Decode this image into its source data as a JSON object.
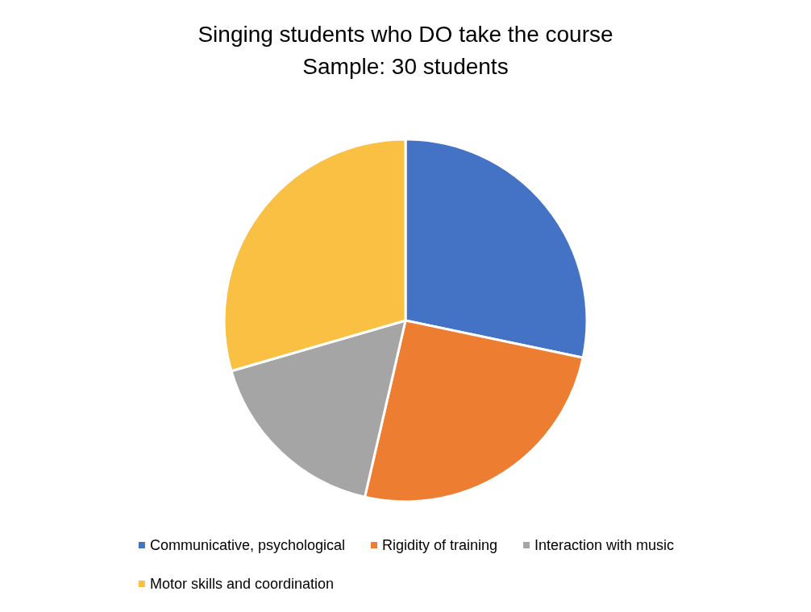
{
  "chart_data": {
    "type": "pie",
    "title": "Singing students who DO take the course",
    "subtitle": "Sample: 30 students",
    "categories": [
      "Communicative, psychological",
      "Rigidity of training",
      "Interaction with music",
      "Motor skills and coordination"
    ],
    "values": [
      28.3,
      25.3,
      16.9,
      29.5
    ],
    "colors": [
      "#4472c4",
      "#ed7d31",
      "#a5a5a5",
      "#f9c044"
    ],
    "legend": "bottom"
  }
}
